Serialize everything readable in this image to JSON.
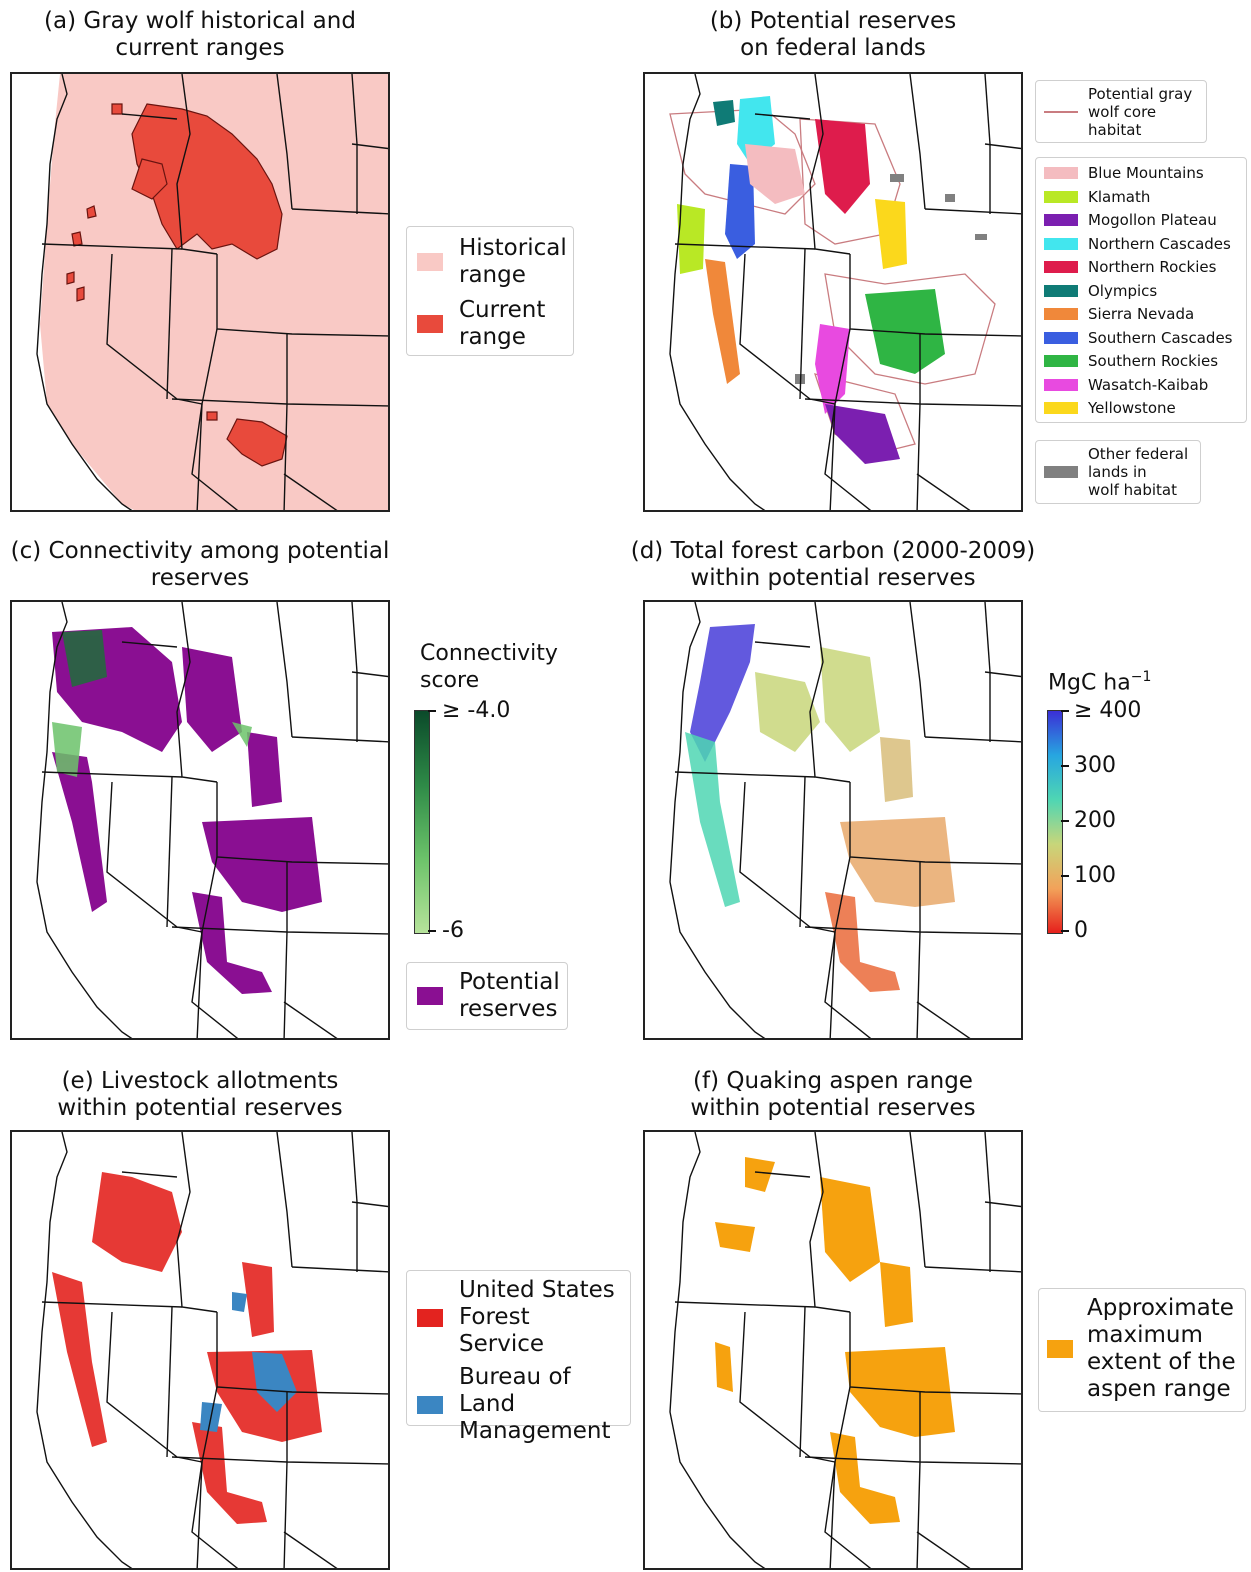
{
  "colors": {
    "historical": "#f9c9c5",
    "current": "#e84a3c",
    "wolf_core_line": "#c97c80",
    "reserve_purple": "#8a0f92",
    "usfs": "#e3231f",
    "blm": "#3b86c2",
    "aspen": "#f6a20f",
    "other_federal": "#808080"
  },
  "panels": {
    "a": {
      "title": "(a) Gray wolf historical and\ncurrent ranges",
      "legend": [
        {
          "label": "Historical\nrange",
          "color": "#f9c9c5"
        },
        {
          "label": "Current\nrange",
          "color": "#e84a3c"
        }
      ]
    },
    "b": {
      "title": "(b) Potential reserves\non federal lands",
      "legend_top": {
        "label": "Potential gray\nwolf core\nhabitat"
      },
      "legend_regions": [
        {
          "label": "Blue Mountains",
          "color": "#f4bcc0"
        },
        {
          "label": "Klamath",
          "color": "#b9e825"
        },
        {
          "label": "Mogollon Plateau",
          "color": "#7b1fb0"
        },
        {
          "label": "Northern Cascades",
          "color": "#42e6ee"
        },
        {
          "label": "Northern Rockies",
          "color": "#de1c4c"
        },
        {
          "label": "Olympics",
          "color": "#0f7b76"
        },
        {
          "label": "Sierra Nevada",
          "color": "#f0883a"
        },
        {
          "label": "Southern Cascades",
          "color": "#3a5ee0"
        },
        {
          "label": "Southern Rockies",
          "color": "#2fb544"
        },
        {
          "label": "Wasatch-Kaibab",
          "color": "#e84ae0"
        },
        {
          "label": "Yellowstone",
          "color": "#fbd81c"
        }
      ],
      "legend_bottom": {
        "label": "Other federal\nlands in\nwolf habitat",
        "color": "#808080"
      }
    },
    "c": {
      "title": "(c) Connectivity among potential\nreserves",
      "colorbar_title": "Connectivity\nscore",
      "colorbar_top_label": "≥ -4.0",
      "colorbar_bottom_label": "-6",
      "colorbar_colors": [
        "#0b4a2a",
        "#2e8a47",
        "#6cc36a",
        "#b6e39b"
      ],
      "legend": [
        {
          "label": "Potential\nreserves",
          "color": "#8a0f92"
        }
      ]
    },
    "d": {
      "title": "(d) Total forest carbon (2000-2009)\nwithin potential reserves",
      "colorbar_title": "MgC ha",
      "colorbar_title_sup": "−1",
      "colorbar_ticks": [
        "≥ 400",
        "300",
        "200",
        "100",
        "0"
      ],
      "colorbar_colors": [
        "#3b2fd6",
        "#27a6e0",
        "#4fd6b3",
        "#c8d67a",
        "#f2a25a",
        "#e6201c"
      ]
    },
    "e": {
      "title": "(e) Livestock allotments\nwithin potential reserves",
      "legend": [
        {
          "label": "United States\nForest Service",
          "color": "#e3231f"
        },
        {
          "label": "Bureau of\nLand\nManagement",
          "color": "#3b86c2"
        }
      ]
    },
    "f": {
      "title": "(f) Quaking aspen range\nwithin potential reserves",
      "legend": [
        {
          "label": "Approximate\nmaximum\nextent of the\naspen range",
          "color": "#f6a20f"
        }
      ]
    }
  }
}
